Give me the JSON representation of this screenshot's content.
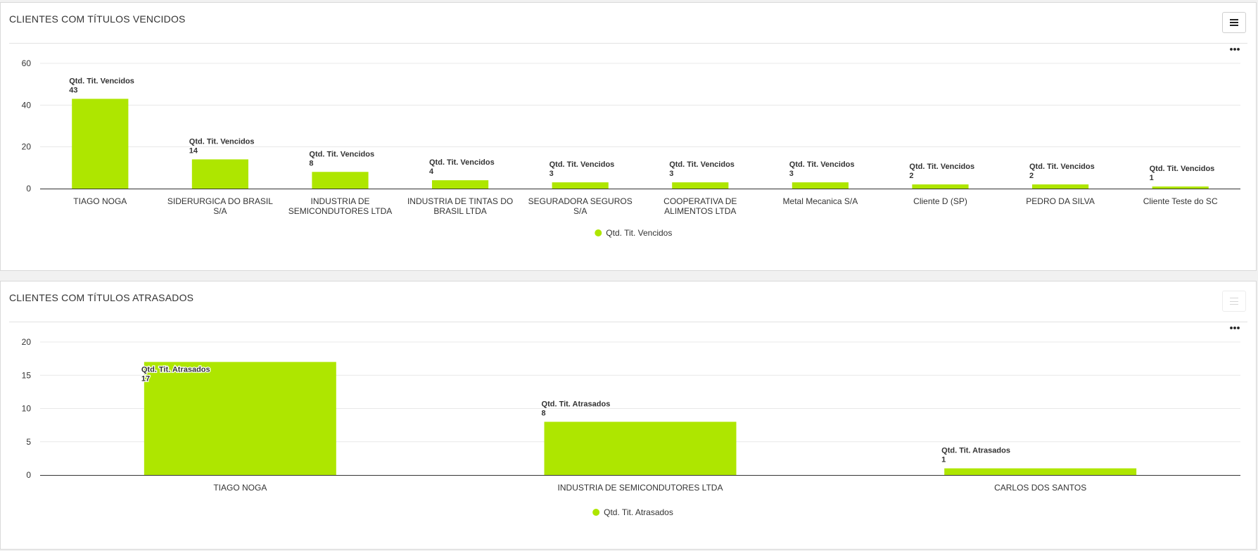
{
  "panels": [
    {
      "title": "CLIENTES COM TÍTULOS VENCIDOS",
      "menu_icon": "hamburger-menu-icon",
      "options_icon": "ellipsis-icon"
    },
    {
      "title": "CLIENTES COM TÍTULOS ATRASADOS",
      "menu_icon": "hamburger-menu-icon",
      "options_icon": "ellipsis-icon"
    }
  ],
  "colors": {
    "bar": "#aee600",
    "axis": "#333333",
    "grid": "#e8e8e8",
    "text": "#333333"
  },
  "chart_data": [
    {
      "type": "bar",
      "title": "CLIENTES COM TÍTULOS VENCIDOS",
      "categories": [
        [
          "TIAGO NOGA"
        ],
        [
          "SIDERURGICA DO BRASIL",
          "S/A"
        ],
        [
          "INDUSTRIA DE",
          "SEMICONDUTORES LTDA"
        ],
        [
          "INDUSTRIA DE TINTAS DO",
          "BRASIL LTDA"
        ],
        [
          "SEGURADORA SEGUROS",
          "S/A"
        ],
        [
          "COOPERATIVA DE",
          "ALIMENTOS LTDA"
        ],
        [
          "Metal Mecanica S/A"
        ],
        [
          "Cliente D (SP)"
        ],
        [
          "PEDRO DA SILVA"
        ],
        [
          "Cliente Teste do SC"
        ]
      ],
      "series": [
        {
          "name": "Qtd. Tit. Vencidos",
          "values": [
            43,
            14,
            8,
            4,
            3,
            3,
            3,
            2,
            2,
            1
          ]
        }
      ],
      "data_label_prefix": "Qtd. Tit. Vencidos",
      "ylim": [
        0,
        60
      ],
      "yticks": [
        0,
        20,
        40,
        60
      ],
      "grid": true,
      "legend": "bottom-center"
    },
    {
      "type": "bar",
      "title": "CLIENTES COM TÍTULOS ATRASADOS",
      "categories": [
        [
          "TIAGO NOGA"
        ],
        [
          "INDUSTRIA DE SEMICONDUTORES LTDA"
        ],
        [
          "CARLOS DOS SANTOS"
        ]
      ],
      "series": [
        {
          "name": "Qtd. Tit. Atrasados",
          "values": [
            17,
            8,
            1
          ]
        }
      ],
      "data_label_prefix": "Qtd. Tit. Atrasados",
      "ylim": [
        0,
        20
      ],
      "yticks": [
        0,
        5,
        10,
        15,
        20
      ],
      "grid": true,
      "legend": "bottom-center"
    }
  ]
}
